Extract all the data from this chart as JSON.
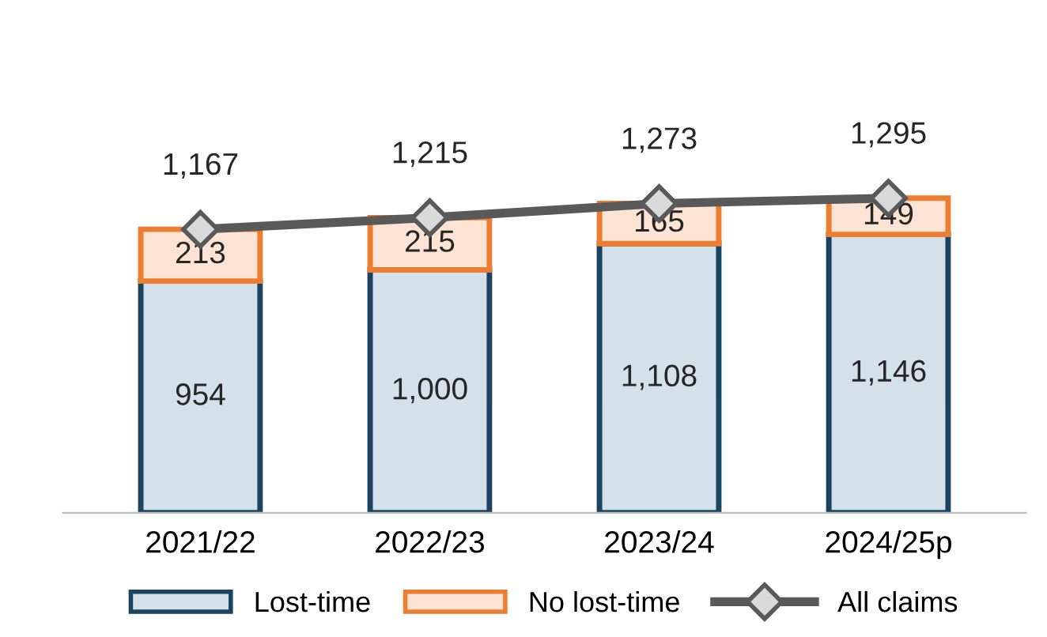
{
  "chart_data": {
    "type": "bar",
    "stacked": true,
    "categories": [
      "2021/22",
      "2022/23",
      "2023/24",
      "2024/25p"
    ],
    "series": [
      {
        "name": "Lost-time",
        "color": "#d5e1ea",
        "values": [
          954,
          1000,
          1108,
          1146
        ],
        "value_labels": [
          "954",
          "1,000",
          "1,108",
          "1,146"
        ]
      },
      {
        "name": "No lost-time",
        "color": "#fce3d3",
        "values": [
          213,
          215,
          165,
          149
        ],
        "value_labels": [
          "213",
          "215",
          "165",
          "149"
        ]
      },
      {
        "name": "All claims",
        "type": "line",
        "color": "#595959",
        "marker": "diamond",
        "values": [
          1167,
          1215,
          1273,
          1295
        ],
        "value_labels": [
          "1,167",
          "1,215",
          "1,273",
          "1,295"
        ]
      }
    ],
    "legend": "bottom",
    "grid": false
  }
}
